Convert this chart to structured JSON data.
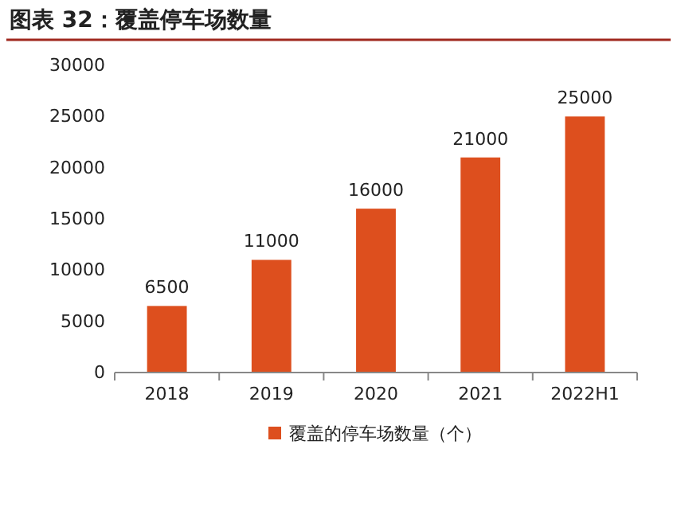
{
  "chart_data": {
    "type": "bar",
    "title": "图表 32：覆盖停车场数量",
    "categories": [
      "2018",
      "2019",
      "2020",
      "2021",
      "2022H1"
    ],
    "series": [
      {
        "name": "覆盖的停车场数量（个）",
        "color": "#dd4f1e",
        "values": [
          6500,
          11000,
          16000,
          21000,
          25000
        ]
      }
    ],
    "ylim": [
      0,
      30000
    ],
    "yticks": [
      0,
      5000,
      10000,
      15000,
      20000,
      25000,
      30000
    ],
    "data_labels": true,
    "grid": false,
    "legend": "bottom"
  }
}
